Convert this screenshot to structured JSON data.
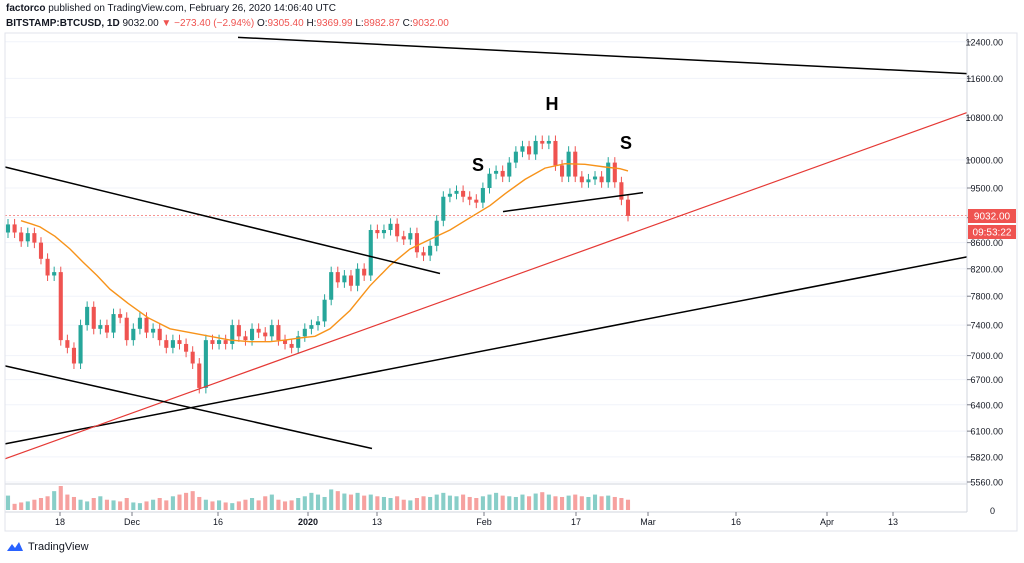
{
  "header": {
    "publisher": "factorco",
    "published_text": "published on TradingView.com, February 26, 2020 14:06:40 UTC",
    "symbol": "BITSTAMP:BTCUSD, 1D",
    "last": "9032.00",
    "change": "▼ −273.40 (−2.94%)",
    "o_label": "O:",
    "o_value": "9305.40",
    "h_label": "H:",
    "h_value": "9369.99",
    "l_label": "L:",
    "l_value": "8982.87",
    "c_label": "C:",
    "c_value": "9032.00"
  },
  "branding": {
    "name": "TradingView"
  },
  "colors": {
    "up": "#26a69a",
    "down": "#ef5350",
    "ma": "#f7931a",
    "trend": "#e53935",
    "lines": "#000000"
  },
  "chart_data": {
    "type": "candlestick",
    "y_ticks": [
      12400,
      11600,
      10800,
      10000,
      9500,
      9000,
      8600,
      8200,
      7800,
      7400,
      7000,
      6700,
      6400,
      6100,
      5820,
      5560
    ],
    "ylim": [
      5560,
      12600
    ],
    "x_ticks": [
      "18",
      "Dec",
      "16",
      "2020",
      "13",
      "Feb",
      "17",
      "Mar",
      "16",
      "Apr",
      "13"
    ],
    "last_price": "9032.00",
    "countdown": "09:53:22",
    "volume_zero_label": "0",
    "pattern_labels": [
      "S",
      "H",
      "S"
    ],
    "candles": [
      [
        8760,
        8890
      ],
      [
        8890,
        8760
      ],
      [
        8760,
        8620
      ],
      [
        8620,
        8750
      ],
      [
        8750,
        8600
      ],
      [
        8600,
        8350
      ],
      [
        8350,
        8100
      ],
      [
        8100,
        8150
      ],
      [
        8150,
        7200
      ],
      [
        7200,
        7100
      ],
      [
        7100,
        6900
      ],
      [
        6900,
        7400
      ],
      [
        7400,
        7650
      ],
      [
        7650,
        7350
      ],
      [
        7350,
        7400
      ],
      [
        7400,
        7300
      ],
      [
        7300,
        7550
      ],
      [
        7550,
        7500
      ],
      [
        7500,
        7200
      ],
      [
        7200,
        7350
      ],
      [
        7350,
        7500
      ],
      [
        7500,
        7300
      ],
      [
        7300,
        7350
      ],
      [
        7350,
        7200
      ],
      [
        7200,
        7100
      ],
      [
        7100,
        7200
      ],
      [
        7200,
        7150
      ],
      [
        7150,
        7050
      ],
      [
        7050,
        6900
      ],
      [
        6900,
        6600
      ],
      [
        6600,
        7200
      ],
      [
        7200,
        7150
      ],
      [
        7150,
        7200
      ],
      [
        7200,
        7150
      ],
      [
        7150,
        7400
      ],
      [
        7400,
        7250
      ],
      [
        7250,
        7200
      ],
      [
        7200,
        7350
      ],
      [
        7350,
        7300
      ],
      [
        7300,
        7250
      ],
      [
        7250,
        7400
      ],
      [
        7400,
        7200
      ],
      [
        7200,
        7150
      ],
      [
        7150,
        7100
      ],
      [
        7100,
        7250
      ],
      [
        7250,
        7350
      ],
      [
        7350,
        7400
      ],
      [
        7400,
        7450
      ],
      [
        7450,
        7750
      ],
      [
        7750,
        8150
      ],
      [
        8150,
        8000
      ],
      [
        8000,
        8100
      ],
      [
        8100,
        7950
      ],
      [
        7950,
        8200
      ],
      [
        8200,
        8100
      ],
      [
        8100,
        8800
      ],
      [
        8800,
        8750
      ],
      [
        8750,
        8800
      ],
      [
        8800,
        8900
      ],
      [
        8900,
        8700
      ],
      [
        8700,
        8650
      ],
      [
        8650,
        8750
      ],
      [
        8750,
        8450
      ],
      [
        8450,
        8400
      ],
      [
        8400,
        8550
      ],
      [
        8550,
        8950
      ],
      [
        8950,
        9350
      ],
      [
        9350,
        9400
      ],
      [
        9400,
        9450
      ],
      [
        9450,
        9350
      ],
      [
        9350,
        9300
      ],
      [
        9300,
        9250
      ],
      [
        9250,
        9500
      ],
      [
        9500,
        9750
      ],
      [
        9750,
        9800
      ],
      [
        9800,
        9700
      ],
      [
        9700,
        9950
      ],
      [
        9950,
        10150
      ],
      [
        10150,
        10250
      ],
      [
        10250,
        10100
      ],
      [
        10100,
        10350
      ],
      [
        10350,
        10300
      ],
      [
        10300,
        10350
      ],
      [
        10350,
        9900
      ],
      [
        9900,
        9700
      ],
      [
        9700,
        10150
      ],
      [
        10150,
        9700
      ],
      [
        9700,
        9600
      ],
      [
        9600,
        9650
      ],
      [
        9650,
        9700
      ],
      [
        9700,
        9600
      ],
      [
        9600,
        9950
      ],
      [
        9950,
        9600
      ],
      [
        9600,
        9300
      ],
      [
        9300,
        9030
      ]
    ],
    "ma20": [
      [
        8950,
        21
      ],
      [
        8900,
        31
      ],
      [
        8850,
        40
      ],
      [
        8700,
        55
      ],
      [
        8500,
        70
      ],
      [
        8300,
        83
      ],
      [
        8100,
        97
      ],
      [
        7900,
        110
      ],
      [
        7700,
        128
      ],
      [
        7500,
        148
      ],
      [
        7350,
        170
      ],
      [
        7300,
        190
      ],
      [
        7250,
        210
      ],
      [
        7200,
        230
      ],
      [
        7180,
        250
      ],
      [
        7180,
        270
      ],
      [
        7200,
        285
      ],
      [
        7230,
        300
      ],
      [
        7250,
        315
      ],
      [
        7350,
        330
      ],
      [
        7600,
        350
      ],
      [
        7950,
        370
      ],
      [
        8250,
        390
      ],
      [
        8500,
        410
      ],
      [
        8650,
        430
      ],
      [
        8800,
        450
      ],
      [
        9000,
        470
      ],
      [
        9200,
        490
      ],
      [
        9400,
        505
      ],
      [
        9650,
        525
      ],
      [
        9850,
        545
      ],
      [
        9930,
        565
      ],
      [
        9920,
        585
      ],
      [
        9870,
        605
      ],
      [
        9840,
        620
      ],
      [
        9800,
        628
      ]
    ],
    "drawn_lines": [
      {
        "from": [
          5960,
          5
        ],
        "to": [
          8380,
          967
        ]
      },
      {
        "from": [
          5800,
          5
        ],
        "to": [
          10900,
          967
        ]
      },
      {
        "from": [
          9870,
          5
        ],
        "to": [
          8130,
          440
        ]
      },
      {
        "from": [
          6870,
          5
        ],
        "to": [
          5910,
          372
        ]
      },
      {
        "from": [
          12500,
          238
        ],
        "to": [
          11700,
          967
        ]
      },
      {
        "from": [
          9100,
          503
        ],
        "to": [
          9420,
          643
        ]
      }
    ],
    "volume": [
      42,
      18,
      22,
      25,
      30,
      35,
      40,
      55,
      70,
      45,
      38,
      30,
      25,
      35,
      40,
      30,
      28,
      25,
      35,
      22,
      20,
      25,
      30,
      35,
      28,
      40,
      45,
      50,
      55,
      38,
      30,
      25,
      28,
      22,
      20,
      25,
      30,
      35,
      28,
      40,
      45,
      30,
      25,
      28,
      35,
      40,
      50,
      45,
      38,
      60,
      55,
      48,
      45,
      50,
      42,
      45,
      40,
      38,
      35,
      40,
      30,
      28,
      35,
      40,
      38,
      45,
      50,
      42,
      40,
      45,
      38,
      35,
      40,
      45,
      50,
      42,
      40,
      38,
      45,
      40,
      48,
      52,
      45,
      40,
      38,
      42,
      45,
      40,
      38,
      45,
      40,
      42,
      38,
      35,
      30
    ]
  }
}
